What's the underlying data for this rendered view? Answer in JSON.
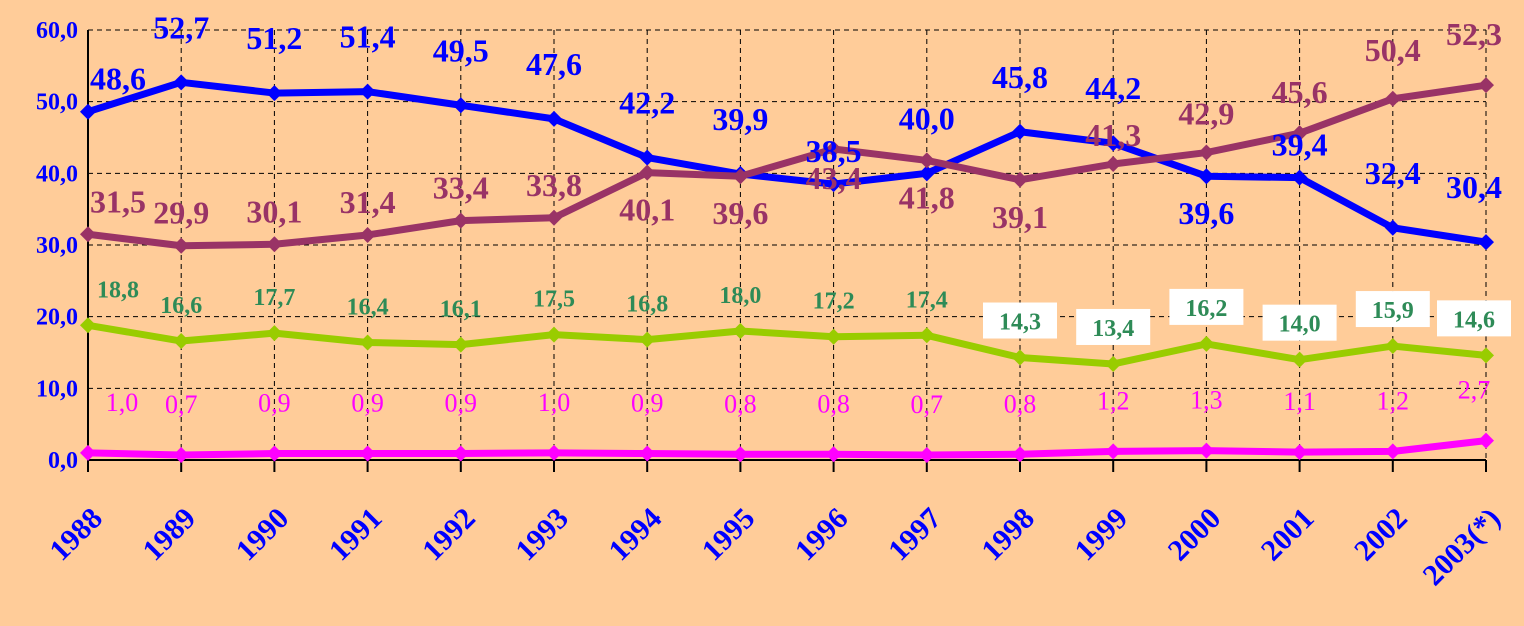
{
  "chart_data": {
    "type": "line",
    "categories": [
      "1988",
      "1989",
      "1990",
      "1991",
      "1992",
      "1993",
      "1994",
      "1995",
      "1996",
      "1997",
      "1998",
      "1999",
      "2000",
      "2001",
      "2002",
      "2003(*)"
    ],
    "ylim": [
      0,
      60
    ],
    "yticks": [
      "0,0",
      "10,0",
      "20,0",
      "30,0",
      "40,0",
      "50,0",
      "60,0"
    ],
    "grid": true,
    "series": [
      {
        "color": "#0000FF",
        "values": [
          48.6,
          52.7,
          51.2,
          51.4,
          49.5,
          47.6,
          42.2,
          39.9,
          38.5,
          40.0,
          45.8,
          44.2,
          39.6,
          39.4,
          32.4,
          30.4
        ],
        "labels": [
          "48,6",
          "52,7",
          "51,2",
          "51,4",
          "49,5",
          "47,6",
          "42,2",
          "39,9",
          "38,5",
          "40,0",
          "45,8",
          "44,2",
          "39,6",
          "39,4",
          "32,4",
          "30,4"
        ]
      },
      {
        "color": "#993366",
        "values": [
          31.5,
          29.9,
          30.1,
          31.4,
          33.4,
          33.8,
          40.1,
          39.6,
          43.4,
          41.8,
          39.1,
          41.3,
          42.9,
          45.6,
          50.4,
          52.3
        ],
        "labels": [
          "31,5",
          "29,9",
          "30,1",
          "31,4",
          "33,4",
          "33,8",
          "40,1",
          "39,6",
          "43,4",
          "41,8",
          "39,1",
          "41,3",
          "42,9",
          "45,6",
          "50,4",
          "52,3"
        ]
      },
      {
        "color": "#99CC00",
        "label_color": "#2E8B57",
        "values": [
          18.8,
          16.6,
          17.7,
          16.4,
          16.1,
          17.5,
          16.8,
          18.0,
          17.2,
          17.4,
          14.3,
          13.4,
          16.2,
          14.0,
          15.9,
          14.6
        ],
        "labels": [
          "18,8",
          "16,6",
          "17,7",
          "16,4",
          "16,1",
          "17,5",
          "16,8",
          "18,0",
          "17,2",
          "17,4",
          "14,3",
          "13,4",
          "16,2",
          "14,0",
          "15,9",
          "14,6"
        ]
      },
      {
        "color": "#FF00FF",
        "values": [
          1.0,
          0.7,
          0.9,
          0.9,
          0.9,
          1.0,
          0.9,
          0.8,
          0.8,
          0.7,
          0.8,
          1.2,
          1.3,
          1.1,
          1.2,
          2.7
        ],
        "labels": [
          "1,0",
          "0,7",
          "0,9",
          "0,9",
          "0,9",
          "1,0",
          "0,9",
          "0,8",
          "0,8",
          "0,7",
          "0,8",
          "1,2",
          "1,3",
          "1,1",
          "1,2",
          "2,7"
        ]
      }
    ]
  }
}
